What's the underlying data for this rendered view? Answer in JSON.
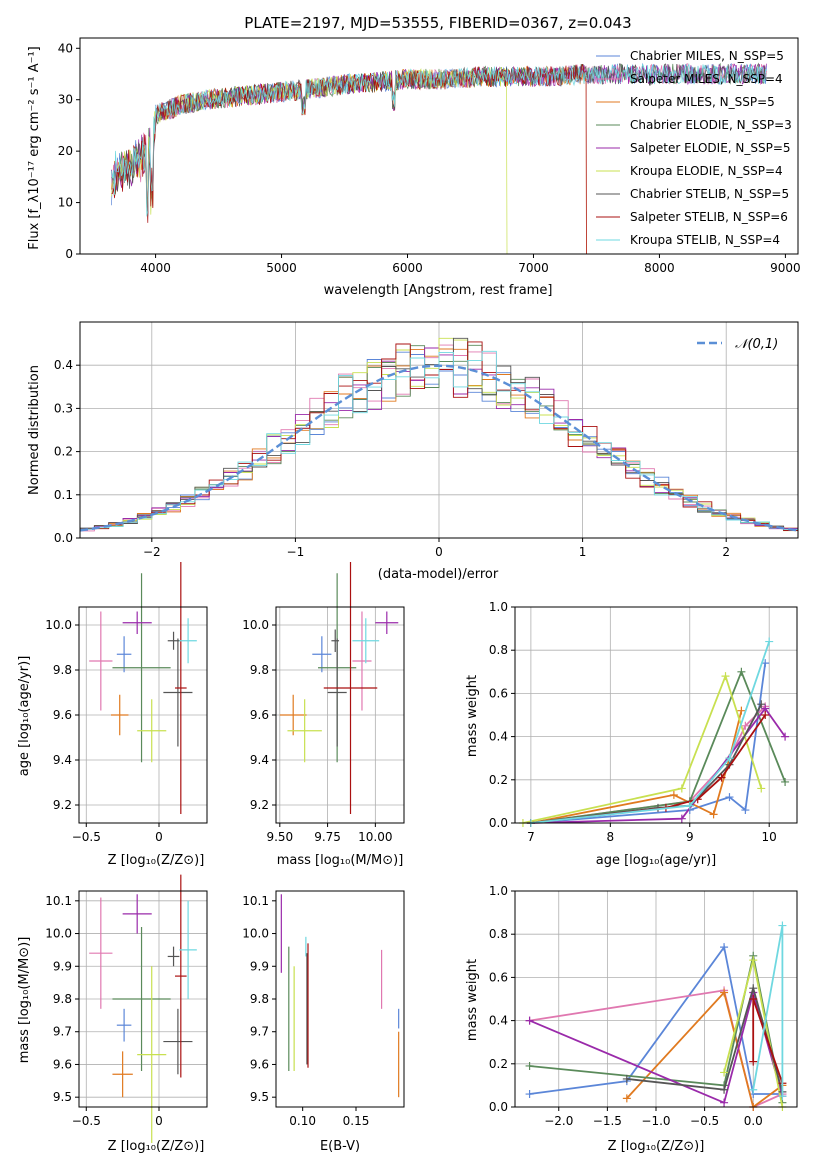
{
  "colors": {
    "chabrier_miles": "#5b86d8",
    "salpeter_miles": "#e078b0",
    "kroupa_miles": "#e07a20",
    "chabrier_elodie": "#5a8a5a",
    "salpeter_elodie": "#9a2aaa",
    "kroupa_elodie": "#c8e050",
    "chabrier_stelib": "#555555",
    "salpeter_stelib": "#aa1010",
    "kroupa_stelib": "#6fd8e0",
    "normal": "#5b8fd6"
  },
  "chart_data": [
    {
      "id": "spectrum",
      "type": "line",
      "title": "PLATE=2197, MJD=53555, FIBERID=0367, z=0.043",
      "xlabel": "wavelength [Angstrom, rest frame]",
      "ylabel": "Flux [f_λ10⁻¹⁷ erg cm⁻² s⁻¹ A⁻¹]",
      "xlim": [
        3400,
        9100
      ],
      "ylim": [
        0,
        42
      ],
      "xticks": [
        4000,
        5000,
        6000,
        7000,
        8000,
        9000
      ],
      "yticks": [
        0,
        10,
        20,
        30,
        40
      ],
      "continuum": {
        "x": [
          3650,
          3700,
          3800,
          3900,
          3950,
          4000,
          4100,
          4200,
          4400,
          4600,
          4800,
          5000,
          5200,
          5500,
          5800,
          6000,
          6300,
          6600,
          6800,
          7000,
          7200,
          7400,
          7600,
          7800,
          8000,
          8200,
          8400,
          8600,
          8800
        ],
        "y": [
          17,
          19,
          20,
          22,
          24,
          27,
          28,
          29,
          30,
          30.5,
          31,
          31.5,
          32,
          33,
          33.5,
          34,
          34,
          34.5,
          34.5,
          34.5,
          34.5,
          35,
          35,
          35,
          35,
          35,
          35,
          35,
          35
        ]
      },
      "legend_placement": "right",
      "series": [
        {
          "name": "Chabrier MILES, N_SSP=5",
          "color_key": "chabrier_miles"
        },
        {
          "name": "Salpeter MILES, N_SSP=4",
          "color_key": "salpeter_miles"
        },
        {
          "name": "Kroupa MILES, N_SSP=5",
          "color_key": "kroupa_miles"
        },
        {
          "name": "Chabrier ELODIE, N_SSP=3",
          "color_key": "chabrier_elodie"
        },
        {
          "name": "Salpeter ELODIE, N_SSP=5",
          "color_key": "salpeter_elodie"
        },
        {
          "name": "Kroupa ELODIE, N_SSP=4",
          "color_key": "kroupa_elodie"
        },
        {
          "name": "Chabrier STELIB, N_SSP=5",
          "color_key": "chabrier_stelib"
        },
        {
          "name": "Salpeter STELIB, N_SSP=6",
          "color_key": "salpeter_stelib"
        },
        {
          "name": "Kroupa STELIB, N_SSP=4",
          "color_key": "kroupa_stelib"
        }
      ]
    },
    {
      "id": "residuals",
      "type": "histogram",
      "xlabel": "(data-model)/error",
      "ylabel": "Normed distribution",
      "xlim": [
        -2.5,
        2.5
      ],
      "ylim": [
        0,
        0.5
      ],
      "xticks": [
        -2,
        -1,
        0,
        1,
        2
      ],
      "yticks": [
        0.0,
        0.1,
        0.2,
        0.3,
        0.4
      ],
      "grid": true,
      "legend_label": "𝒩(0,1)",
      "legend_placement": "top-right"
    },
    {
      "id": "age_vs_Z",
      "type": "errorbar",
      "xlabel": "Z [log₁₀(Z/Z⊙)]",
      "ylabel": "age  [log₁₀(age/yr)]",
      "xlim": [
        -0.55,
        0.33
      ],
      "ylim": [
        9.12,
        10.08
      ],
      "xticks": [
        -0.5,
        0.0
      ],
      "yticks": [
        9.2,
        9.4,
        9.6,
        9.8,
        10.0
      ],
      "grid": true,
      "points": [
        {
          "key": "chabrier_miles",
          "x": -0.24,
          "y": 9.87,
          "xerr": 0.05,
          "yerr": 0.08
        },
        {
          "key": "salpeter_miles",
          "x": -0.4,
          "y": 9.84,
          "xerr": 0.08,
          "yerr": 0.22
        },
        {
          "key": "kroupa_miles",
          "x": -0.27,
          "y": 9.6,
          "xerr": 0.06,
          "yerr": 0.09
        },
        {
          "key": "chabrier_elodie",
          "x": -0.12,
          "y": 9.81,
          "xerr": 0.2,
          "yerr": 0.42
        },
        {
          "key": "salpeter_elodie",
          "x": -0.15,
          "y": 10.01,
          "xerr": 0.1,
          "yerr": 0.05
        },
        {
          "key": "kroupa_elodie",
          "x": -0.05,
          "y": 9.53,
          "xerr": 0.1,
          "yerr": 0.14
        },
        {
          "key": "chabrier_stelib",
          "x": 0.13,
          "y": 9.7,
          "xerr": 0.1,
          "yerr": 0.24
        },
        {
          "key": "salpeter_stelib",
          "x": 0.15,
          "y": 9.72,
          "xerr": 0.04,
          "yerr": 0.56
        },
        {
          "key": "kroupa_stelib",
          "x": 0.2,
          "y": 9.93,
          "xerr": 0.06,
          "yerr": 0.1
        },
        {
          "key": "chabrier_stelib",
          "x": 0.1,
          "y": 9.93,
          "xerr": 0.04,
          "yerr": 0.04
        }
      ]
    },
    {
      "id": "age_vs_mass",
      "type": "errorbar",
      "xlabel": "mass [log₁₀(M/M⊙)]",
      "ylabel": "",
      "xlim": [
        9.48,
        10.15
      ],
      "ylim": [
        9.12,
        10.08
      ],
      "xticks": [
        9.5,
        9.75,
        10.0
      ],
      "xtick_labels": [
        "9.50",
        "9.75",
        "10.00"
      ],
      "yticks": [
        9.2,
        9.4,
        9.6,
        9.8,
        10.0
      ],
      "grid": true,
      "points": [
        {
          "key": "chabrier_miles",
          "x": 9.72,
          "y": 9.87,
          "xerr": 0.05,
          "yerr": 0.08
        },
        {
          "key": "salpeter_miles",
          "x": 9.93,
          "y": 9.84,
          "xerr": 0.05,
          "yerr": 0.22
        },
        {
          "key": "kroupa_miles",
          "x": 9.57,
          "y": 9.6,
          "xerr": 0.07,
          "yerr": 0.09
        },
        {
          "key": "chabrier_elodie",
          "x": 9.8,
          "y": 9.81,
          "xerr": 0.1,
          "yerr": 0.42
        },
        {
          "key": "salpeter_elodie",
          "x": 10.06,
          "y": 10.01,
          "xerr": 0.06,
          "yerr": 0.05
        },
        {
          "key": "kroupa_elodie",
          "x": 9.63,
          "y": 9.53,
          "xerr": 0.09,
          "yerr": 0.14
        },
        {
          "key": "chabrier_stelib",
          "x": 9.8,
          "y": 9.7,
          "xerr": 0.05,
          "yerr": 0.24
        },
        {
          "key": "salpeter_stelib",
          "x": 9.87,
          "y": 9.72,
          "xerr": 0.14,
          "yerr": 0.56
        },
        {
          "key": "kroupa_stelib",
          "x": 9.95,
          "y": 9.93,
          "xerr": 0.07,
          "yerr": 0.1
        },
        {
          "key": "chabrier_stelib",
          "x": 9.79,
          "y": 9.93,
          "xerr": 0.02,
          "yerr": 0.05
        }
      ]
    },
    {
      "id": "massweight_vs_age",
      "type": "line",
      "xlabel": "age  [log₁₀(age/yr)]",
      "ylabel": "mass weight",
      "xlim": [
        6.8,
        10.35
      ],
      "ylim": [
        0,
        1.0
      ],
      "xticks": [
        7,
        8,
        9,
        10
      ],
      "yticks": [
        0.0,
        0.2,
        0.4,
        0.6,
        0.8,
        1.0
      ],
      "grid": true,
      "series": [
        {
          "key": "chabrier_miles",
          "x": [
            7.0,
            9.0,
            9.5,
            9.7,
            9.95
          ],
          "y": [
            0.0,
            0.06,
            0.12,
            0.06,
            0.74
          ]
        },
        {
          "key": "salpeter_miles",
          "x": [
            7.0,
            9.0,
            9.5,
            9.7,
            9.95
          ],
          "y": [
            0.0,
            0.1,
            0.3,
            0.45,
            0.54
          ]
        },
        {
          "key": "kroupa_miles",
          "x": [
            7.0,
            8.8,
            9.3,
            9.5,
            9.65
          ],
          "y": [
            0.0,
            0.13,
            0.04,
            0.3,
            0.52
          ]
        },
        {
          "key": "chabrier_elodie",
          "x": [
            7.0,
            9.0,
            9.65,
            10.2
          ],
          "y": [
            0.0,
            0.1,
            0.7,
            0.19
          ]
        },
        {
          "key": "salpeter_elodie",
          "x": [
            7.0,
            8.9,
            9.95,
            10.2
          ],
          "y": [
            0.0,
            0.02,
            0.53,
            0.4
          ]
        },
        {
          "key": "kroupa_elodie",
          "x": [
            6.9,
            8.9,
            9.45,
            9.9
          ],
          "y": [
            0.0,
            0.16,
            0.68,
            0.16
          ]
        },
        {
          "key": "chabrier_stelib",
          "x": [
            7.0,
            8.6,
            9.0,
            9.5,
            9.9
          ],
          "y": [
            0.0,
            0.07,
            0.08,
            0.27,
            0.55
          ]
        },
        {
          "key": "salpeter_stelib",
          "x": [
            7.0,
            8.7,
            9.1,
            9.4,
            9.95
          ],
          "y": [
            0.0,
            0.07,
            0.11,
            0.21,
            0.5
          ]
        },
        {
          "key": "kroupa_stelib",
          "x": [
            7.0,
            9.0,
            9.5,
            10.0
          ],
          "y": [
            0.0,
            0.08,
            0.3,
            0.84
          ]
        }
      ]
    },
    {
      "id": "mass_vs_Z",
      "type": "errorbar",
      "xlabel": "Z [log₁₀(Z/Z⊙)]",
      "ylabel": "mass [log₁₀(M/M⊙)]",
      "xlim": [
        -0.55,
        0.33
      ],
      "ylim": [
        9.47,
        10.13
      ],
      "xticks": [
        -0.5,
        0.0
      ],
      "yticks": [
        9.5,
        9.6,
        9.7,
        9.8,
        9.9,
        10.0,
        10.1
      ],
      "grid": true,
      "points": [
        {
          "key": "chabrier_miles",
          "x": -0.24,
          "y": 9.72,
          "xerr": 0.05,
          "yerr": 0.05
        },
        {
          "key": "salpeter_miles",
          "x": -0.4,
          "y": 9.94,
          "xerr": 0.08,
          "yerr": 0.17
        },
        {
          "key": "kroupa_miles",
          "x": -0.25,
          "y": 9.57,
          "xerr": 0.07,
          "yerr": 0.07
        },
        {
          "key": "chabrier_elodie",
          "x": -0.12,
          "y": 9.8,
          "xerr": 0.2,
          "yerr": 0.22
        },
        {
          "key": "salpeter_elodie",
          "x": -0.15,
          "y": 10.06,
          "xerr": 0.1,
          "yerr": 0.06
        },
        {
          "key": "kroupa_elodie",
          "x": -0.05,
          "y": 9.63,
          "xerr": 0.1,
          "yerr": 0.27
        },
        {
          "key": "chabrier_stelib",
          "x": 0.13,
          "y": 9.67,
          "xerr": 0.1,
          "yerr": 0.1
        },
        {
          "key": "salpeter_stelib",
          "x": 0.15,
          "y": 9.87,
          "xerr": 0.04,
          "yerr": 0.31
        },
        {
          "key": "kroupa_stelib",
          "x": 0.2,
          "y": 9.95,
          "xerr": 0.06,
          "yerr": 0.15
        },
        {
          "key": "chabrier_stelib",
          "x": 0.1,
          "y": 9.93,
          "xerr": 0.04,
          "yerr": 0.03
        }
      ]
    },
    {
      "id": "mass_vs_EBV",
      "type": "errorbar",
      "xlabel": "E(B-V)",
      "ylabel": "",
      "xlim": [
        0.075,
        0.195
      ],
      "ylim": [
        9.47,
        10.13
      ],
      "xticks": [
        0.1,
        0.15
      ],
      "xtick_labels": [
        "0.10",
        "0.15"
      ],
      "yticks": [
        9.5,
        9.6,
        9.7,
        9.8,
        9.9,
        10.0,
        10.1
      ],
      "grid": false,
      "points": [
        {
          "key": "salpeter_elodie",
          "x": 0.08,
          "y": 10.0,
          "xerr": 0,
          "yerr": 0.12
        },
        {
          "key": "chabrier_elodie",
          "x": 0.087,
          "y": 9.77,
          "xerr": 0,
          "yerr": 0.19
        },
        {
          "key": "kroupa_elodie",
          "x": 0.092,
          "y": 9.74,
          "xerr": 0,
          "yerr": 0.16
        },
        {
          "key": "kroupa_stelib",
          "x": 0.103,
          "y": 9.96,
          "xerr": 0,
          "yerr": 0.03
        },
        {
          "key": "chabrier_stelib",
          "x": 0.104,
          "y": 9.77,
          "xerr": 0,
          "yerr": 0.17
        },
        {
          "key": "salpeter_stelib",
          "x": 0.105,
          "y": 9.78,
          "xerr": 0,
          "yerr": 0.19
        },
        {
          "key": "salpeter_miles",
          "x": 0.174,
          "y": 9.86,
          "xerr": 0,
          "yerr": 0.09
        },
        {
          "key": "chabrier_miles",
          "x": 0.19,
          "y": 9.74,
          "xerr": 0,
          "yerr": 0.03
        },
        {
          "key": "kroupa_miles",
          "x": 0.19,
          "y": 9.6,
          "xerr": 0,
          "yerr": 0.1
        }
      ]
    },
    {
      "id": "massweight_vs_Z",
      "type": "line",
      "xlabel": "Z [log₁₀(Z/Z⊙)]",
      "ylabel": "mass weight",
      "xlim": [
        -2.45,
        0.45
      ],
      "ylim": [
        0,
        1.0
      ],
      "xticks": [
        -2.0,
        -1.5,
        -1.0,
        -0.5,
        0.0
      ],
      "xtick_labels": [
        "−2.0",
        "−1.5",
        "−1.0",
        "−0.5",
        "0.0"
      ],
      "yticks": [
        0.0,
        0.2,
        0.4,
        0.6,
        0.8,
        1.0
      ],
      "grid": true,
      "series": [
        {
          "key": "chabrier_miles",
          "x": [
            -2.3,
            -1.3,
            -0.3,
            0.0,
            0.3
          ],
          "y": [
            0.06,
            0.12,
            0.74,
            0.06,
            0.06
          ]
        },
        {
          "key": "salpeter_miles",
          "x": [
            -2.3,
            -0.3,
            0.0,
            0.3
          ],
          "y": [
            0.4,
            0.54,
            0.0,
            0.06
          ]
        },
        {
          "key": "kroupa_miles",
          "x": [
            -1.3,
            -0.3,
            0.0,
            0.3
          ],
          "y": [
            0.04,
            0.53,
            0.0,
            0.1
          ]
        },
        {
          "key": "chabrier_elodie",
          "x": [
            -2.3,
            -0.3,
            0.0,
            0.3
          ],
          "y": [
            0.19,
            0.1,
            0.7,
            0.02
          ]
        },
        {
          "key": "salpeter_elodie",
          "x": [
            -2.3,
            -0.3,
            0.0,
            0.3
          ],
          "y": [
            0.4,
            0.02,
            0.53,
            0.05
          ]
        },
        {
          "key": "kroupa_elodie",
          "x": [
            -0.3,
            0.0,
            0.3
          ],
          "y": [
            0.16,
            0.68,
            0.0
          ]
        },
        {
          "key": "chabrier_stelib",
          "x": [
            -1.3,
            -0.3,
            0.0,
            0.3
          ],
          "y": [
            0.13,
            0.08,
            0.55,
            0.07
          ]
        },
        {
          "key": "salpeter_stelib",
          "x": [
            0.0,
            0.0,
            0.3
          ],
          "y": [
            0.21,
            0.5,
            0.11
          ]
        },
        {
          "key": "kroupa_stelib",
          "x": [
            0.0,
            0.3,
            0.3
          ],
          "y": [
            0.08,
            0.84,
            0.05
          ]
        }
      ]
    }
  ]
}
